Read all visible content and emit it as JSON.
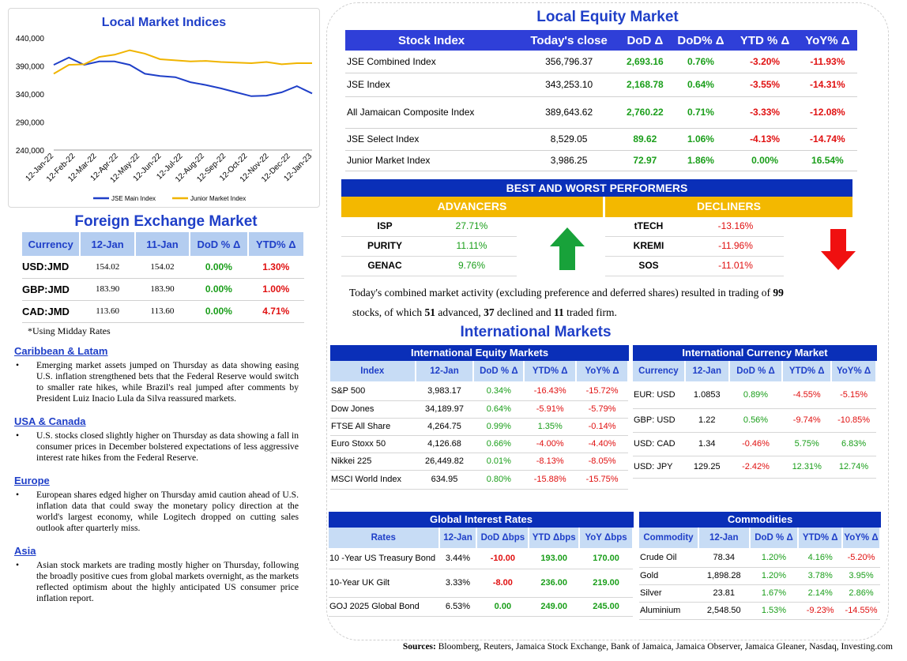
{
  "local_indices": {
    "title": "Local Market Indices"
  },
  "chart_data": {
    "type": "line",
    "ylim": [
      240000,
      440000
    ],
    "yticks": [
      "440,000",
      "390,000",
      "340,000",
      "290,000",
      "240,000"
    ],
    "x_ticks": [
      "12-Jan-22",
      "12-Feb-22",
      "12-Mar-22",
      "12-Apr-22",
      "12-May-22",
      "12-Jun-22",
      "12-Jul-22",
      "12-Aug-22",
      "12-Sep-22",
      "12-Oct-22",
      "12-Nov-22",
      "12-Dec-22",
      "12-Jan-23"
    ],
    "series": [
      {
        "name": "JSE Main Index",
        "color": "#1f3fc8",
        "values": [
          392000,
          405000,
          392000,
          398000,
          398000,
          392000,
          376000,
          372000,
          370000,
          361000,
          356000,
          350000,
          343000,
          336000,
          337000,
          343000,
          354000,
          341000
        ]
      },
      {
        "name": "Junior Market Index",
        "color": "#f0b400",
        "values": [
          376000,
          392000,
          393000,
          406000,
          410000,
          418000,
          412000,
          402000,
          400000,
          398000,
          399000,
          397000,
          396000,
          395000,
          397000,
          393000,
          395000,
          395000
        ]
      }
    ]
  },
  "equity": {
    "title": "Local Equity Market",
    "headers": [
      "Stock Index",
      "Today's close",
      "DoD  Δ",
      "DoD% Δ",
      "YTD % Δ",
      "YoY% Δ"
    ],
    "rows": [
      {
        "name": "JSE Combined Index",
        "close": "356,796.37",
        "dod": "2,693.16",
        "dodp": "0.76%",
        "ytd": "-3.20%",
        "yoy": "-11.93%"
      },
      {
        "name": "JSE Index",
        "close": "343,253.10",
        "dod": "2,168.78",
        "dodp": "0.64%",
        "ytd": "-3.55%",
        "yoy": "-14.31%"
      },
      {
        "name": "All Jamaican Composite Index",
        "close": "389,643.62",
        "dod": "2,760.22",
        "dodp": "0.71%",
        "ytd": "-3.33%",
        "yoy": "-12.08%"
      },
      {
        "name": "JSE Select Index",
        "close": "8,529.05",
        "dod": "89.62",
        "dodp": "1.06%",
        "ytd": "-4.13%",
        "yoy": "-14.74%"
      },
      {
        "name": "Junior Market Index",
        "close": "3,986.25",
        "dod": "72.97",
        "dodp": "1.86%",
        "ytd": "0.00%",
        "yoy": "16.54%"
      }
    ]
  },
  "performers": {
    "title": "BEST AND WORST PERFORMERS",
    "adv_label": "ADVANCERS",
    "dec_label": "DECLINERS",
    "advancers": [
      {
        "name": "ISP",
        "val": "27.71%"
      },
      {
        "name": "PURITY",
        "val": "11.11%"
      },
      {
        "name": "GENAC",
        "val": "9.76%"
      }
    ],
    "decliners": [
      {
        "name": "tTECH",
        "val": "-13.16%"
      },
      {
        "name": "KREMI",
        "val": "-11.96%"
      },
      {
        "name": "SOS",
        "val": "-11.01%"
      }
    ]
  },
  "summary": {
    "line1_a": "Today's combined market activity (excluding preference and deferred shares) resulted in trading of ",
    "line1_b": "99",
    "line2_a": "stocks, of which ",
    "adv": "51",
    "line2_b": " advanced, ",
    "dec": "37",
    "line2_c": " declined and ",
    "firm": "11",
    "line2_d": " traded firm."
  },
  "fx": {
    "title": "Foreign Exchange Market",
    "headers": [
      "Currency",
      "12-Jan",
      "11-Jan",
      "DoD % Δ",
      "YTD% Δ"
    ],
    "rows": [
      {
        "cur": "USD:JMD",
        "a": "154.02",
        "b": "154.02",
        "dod": "0.00%",
        "ytd": "1.30%"
      },
      {
        "cur": "GBP:JMD",
        "a": "183.90",
        "b": "183.90",
        "dod": "0.00%",
        "ytd": "1.00%"
      },
      {
        "cur": "CAD:JMD",
        "a": "113.60",
        "b": "113.60",
        "dod": "0.00%",
        "ytd": "4.71%"
      }
    ],
    "note": "*Using Midday Rates"
  },
  "news": [
    {
      "region": "Caribbean & Latam",
      "text": "Emerging market assets jumped on Thursday as data showing easing U.S. inflation strengthened bets that the Federal Reserve would switch to smaller rate hikes, while Brazil's real jumped after comments by President Luiz Inacio Lula da Silva reassured markets."
    },
    {
      "region": "USA & Canada",
      "text": "U.S. stocks closed slightly higher on Thursday as data showing a fall in consumer prices in December bolstered expectations of less aggressive interest rate hikes from the Federal Reserve."
    },
    {
      "region": "Europe",
      "text": "European shares edged higher on Thursday amid caution ahead of U.S. inflation data that could sway the monetary policy direction at the world's largest economy, while Logitech dropped on cutting sales outlook after quarterly miss."
    },
    {
      "region": "Asia",
      "text": "Asian stock markets are trading mostly higher on Thursday, following the broadly positive cues from global markets overnight, as the markets reflected optimism about the highly anticipated US consumer price inflation report."
    }
  ],
  "intl": {
    "title": "International Markets",
    "eq_title": "International Equity Markets",
    "eq_headers": [
      "Index",
      "12-Jan",
      "DoD % Δ",
      "YTD% Δ",
      "YoY% Δ"
    ],
    "eq_rows": [
      {
        "n": "S&P 500",
        "v": "3,983.17",
        "d": "0.34%",
        "y": "-16.43%",
        "yy": "-15.72%"
      },
      {
        "n": "Dow Jones",
        "v": "34,189.97",
        "d": "0.64%",
        "y": "-5.91%",
        "yy": "-5.79%"
      },
      {
        "n": "FTSE All Share",
        "v": "4,264.75",
        "d": "0.99%",
        "y": "1.35%",
        "yy": "-0.14%"
      },
      {
        "n": "Euro Stoxx 50",
        "v": "4,126.68",
        "d": "0.66%",
        "y": "-4.00%",
        "yy": "-4.40%"
      },
      {
        "n": "Nikkei 225",
        "v": "26,449.82",
        "d": "0.01%",
        "y": "-8.13%",
        "yy": "-8.05%"
      },
      {
        "n": "MSCI World Index",
        "v": "634.95",
        "d": "0.80%",
        "y": "-15.88%",
        "yy": "-15.75%"
      }
    ],
    "cur_title": "International Currency Market",
    "cur_headers": [
      "Currency",
      "12-Jan",
      "DoD % Δ",
      "YTD% Δ",
      "YoY% Δ"
    ],
    "cur_rows": [
      {
        "n": "EUR: USD",
        "v": "1.0853",
        "d": "0.89%",
        "y": "-4.55%",
        "yy": "-5.15%"
      },
      {
        "n": "GBP: USD",
        "v": "1.22",
        "d": "0.56%",
        "y": "-9.74%",
        "yy": "-10.85%"
      },
      {
        "n": "USD: CAD",
        "v": "1.34",
        "d": "-0.46%",
        "y": "5.75%",
        "yy": "6.83%"
      },
      {
        "n": "USD: JPY",
        "v": "129.25",
        "d": "-2.42%",
        "y": "12.31%",
        "yy": "12.74%"
      }
    ],
    "rates_title": "Global Interest Rates",
    "rates_headers": [
      "Rates",
      "12-Jan",
      "DoD Δbps",
      "YTD Δbps",
      "YoY Δbps"
    ],
    "rates_rows": [
      {
        "n": "10 -Year US Treasury Bond",
        "v": "3.44%",
        "d": "-10.00",
        "y": "193.00",
        "yy": "170.00"
      },
      {
        "n": "10-Year UK Gilt",
        "v": "3.33%",
        "d": "-8.00",
        "y": "236.00",
        "yy": "219.00"
      },
      {
        "n": "GOJ 2025 Global Bond",
        "v": "6.53%",
        "d": "0.00",
        "y": "249.00",
        "yy": "245.00"
      }
    ],
    "com_title": "Commodities",
    "com_headers": [
      "Commodity",
      "12-Jan",
      "DoD % Δ",
      "YTD% Δ",
      "YoY% Δ"
    ],
    "com_rows": [
      {
        "n": "Crude Oil",
        "v": "78.34",
        "d": "1.20%",
        "y": "4.16%",
        "yy": "-5.20%"
      },
      {
        "n": "Gold",
        "v": "1,898.28",
        "d": "1.20%",
        "y": "3.78%",
        "yy": "3.95%"
      },
      {
        "n": "Silver",
        "v": "23.81",
        "d": "1.67%",
        "y": "2.14%",
        "yy": "2.86%"
      },
      {
        "n": "Aluminium",
        "v": "2,548.50",
        "d": "1.53%",
        "y": "-9.23%",
        "yy": "-14.55%"
      }
    ]
  },
  "sources": {
    "label": "Sources:",
    "text": " Bloomberg, Reuters, Jamaica Stock Exchange, Bank of Jamaica, Jamaica Observer, Jamaica Gleaner, Nasdaq, Investing.com"
  }
}
